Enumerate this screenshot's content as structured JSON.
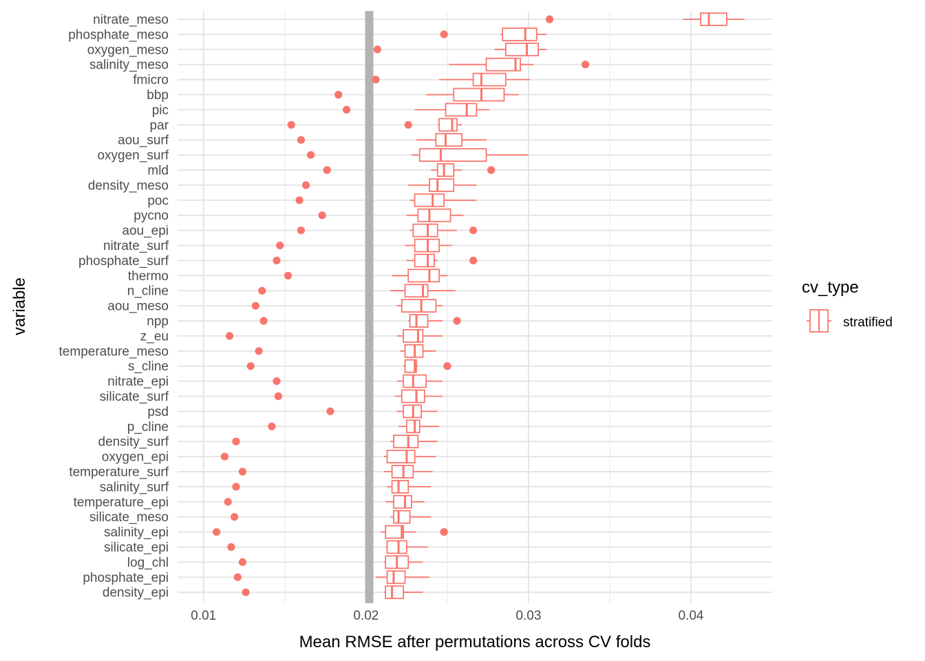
{
  "chart_data": {
    "type": "boxplot",
    "xlabel": "Mean RMSE after permutations across CV folds",
    "ylabel": "variable",
    "xlim": [
      0.0084,
      0.045
    ],
    "x_ticks": [
      0.01,
      0.02,
      0.03,
      0.04
    ],
    "x_tick_labels": [
      "0.01",
      "0.02",
      "0.03",
      "0.04"
    ],
    "grid": true,
    "baseline_value": 0.0202,
    "baseline_color": "#b3b3b3",
    "series_color": "#f8766d",
    "legend": {
      "title": "cv_type",
      "entries": [
        "stratified"
      ],
      "position": "right"
    },
    "variables": [
      {
        "name": "nitrate_meso",
        "wmin": 0.0395,
        "q1": 0.0406,
        "median": 0.0411,
        "q3": 0.0422,
        "wmax": 0.0433,
        "outliers": [
          0.0313
        ]
      },
      {
        "name": "phosphate_meso",
        "wmin": 0.0283,
        "q1": 0.0284,
        "median": 0.0298,
        "q3": 0.0305,
        "wmax": 0.0311,
        "outliers": [
          0.0248
        ]
      },
      {
        "name": "oxygen_meso",
        "wmin": 0.0279,
        "q1": 0.0286,
        "median": 0.0299,
        "q3": 0.0306,
        "wmax": 0.0311,
        "outliers": [
          0.0207
        ]
      },
      {
        "name": "salinity_meso",
        "wmin": 0.0251,
        "q1": 0.0274,
        "median": 0.0292,
        "q3": 0.0295,
        "wmax": 0.0303,
        "outliers": [
          0.0335
        ]
      },
      {
        "name": "fmicro",
        "wmin": 0.0245,
        "q1": 0.0266,
        "median": 0.0271,
        "q3": 0.0286,
        "wmax": 0.0301,
        "outliers": [
          0.0206
        ]
      },
      {
        "name": "bbp",
        "wmin": 0.0237,
        "q1": 0.0254,
        "median": 0.0271,
        "q3": 0.0285,
        "wmax": 0.0294,
        "outliers": [
          0.0183
        ]
      },
      {
        "name": "pic",
        "wmin": 0.023,
        "q1": 0.0249,
        "median": 0.0262,
        "q3": 0.0268,
        "wmax": 0.0276,
        "outliers": [
          0.0188
        ]
      },
      {
        "name": "par",
        "wmin": 0.0244,
        "q1": 0.0245,
        "median": 0.0253,
        "q3": 0.0256,
        "wmax": 0.0259,
        "outliers": [
          0.0154,
          0.0226
        ]
      },
      {
        "name": "aou_surf",
        "wmin": 0.0231,
        "q1": 0.0243,
        "median": 0.0249,
        "q3": 0.0259,
        "wmax": 0.0274,
        "outliers": [
          0.016
        ]
      },
      {
        "name": "oxygen_surf",
        "wmin": 0.0228,
        "q1": 0.0233,
        "median": 0.0246,
        "q3": 0.0274,
        "wmax": 0.03,
        "outliers": [
          0.0166
        ]
      },
      {
        "name": "mld",
        "wmin": 0.024,
        "q1": 0.0244,
        "median": 0.0248,
        "q3": 0.0254,
        "wmax": 0.0259,
        "outliers": [
          0.0176,
          0.0277
        ]
      },
      {
        "name": "density_meso",
        "wmin": 0.0226,
        "q1": 0.0239,
        "median": 0.0244,
        "q3": 0.0254,
        "wmax": 0.0268,
        "outliers": [
          0.0163
        ]
      },
      {
        "name": "poc",
        "wmin": 0.0227,
        "q1": 0.023,
        "median": 0.0241,
        "q3": 0.0248,
        "wmax": 0.0268,
        "outliers": [
          0.0159
        ]
      },
      {
        "name": "pycno",
        "wmin": 0.0225,
        "q1": 0.0232,
        "median": 0.0239,
        "q3": 0.0252,
        "wmax": 0.026,
        "outliers": [
          0.0173
        ]
      },
      {
        "name": "aou_epi",
        "wmin": 0.0227,
        "q1": 0.0229,
        "median": 0.0238,
        "q3": 0.0244,
        "wmax": 0.0256,
        "outliers": [
          0.016,
          0.0266
        ]
      },
      {
        "name": "nitrate_surf",
        "wmin": 0.0224,
        "q1": 0.023,
        "median": 0.0238,
        "q3": 0.0245,
        "wmax": 0.0253,
        "outliers": [
          0.0147
        ]
      },
      {
        "name": "phosphate_surf",
        "wmin": 0.0225,
        "q1": 0.023,
        "median": 0.0238,
        "q3": 0.0242,
        "wmax": 0.0244,
        "outliers": [
          0.0145,
          0.0266
        ]
      },
      {
        "name": "thermo",
        "wmin": 0.0216,
        "q1": 0.0226,
        "median": 0.0239,
        "q3": 0.0245,
        "wmax": 0.025,
        "outliers": [
          0.0152
        ]
      },
      {
        "name": "n_cline",
        "wmin": 0.0215,
        "q1": 0.0224,
        "median": 0.0235,
        "q3": 0.0238,
        "wmax": 0.0255,
        "outliers": [
          0.0136
        ]
      },
      {
        "name": "aou_meso",
        "wmin": 0.0219,
        "q1": 0.0222,
        "median": 0.0234,
        "q3": 0.0243,
        "wmax": 0.0247,
        "outliers": [
          0.0132
        ]
      },
      {
        "name": "npp",
        "wmin": 0.0226,
        "q1": 0.0227,
        "median": 0.0231,
        "q3": 0.0238,
        "wmax": 0.0247,
        "outliers": [
          0.0137,
          0.0256
        ]
      },
      {
        "name": "z_eu",
        "wmin": 0.0219,
        "q1": 0.0223,
        "median": 0.0232,
        "q3": 0.0235,
        "wmax": 0.0247,
        "outliers": [
          0.0116
        ]
      },
      {
        "name": "temperature_meso",
        "wmin": 0.0221,
        "q1": 0.0224,
        "median": 0.023,
        "q3": 0.0235,
        "wmax": 0.0243,
        "outliers": [
          0.0134
        ]
      },
      {
        "name": "s_cline",
        "wmin": 0.0223,
        "q1": 0.0224,
        "median": 0.023,
        "q3": 0.0231,
        "wmax": 0.0232,
        "outliers": [
          0.0129,
          0.025
        ]
      },
      {
        "name": "nitrate_epi",
        "wmin": 0.0219,
        "q1": 0.0223,
        "median": 0.0229,
        "q3": 0.0237,
        "wmax": 0.0247,
        "outliers": [
          0.0145
        ]
      },
      {
        "name": "silicate_surf",
        "wmin": 0.0218,
        "q1": 0.0222,
        "median": 0.0231,
        "q3": 0.0236,
        "wmax": 0.0247,
        "outliers": [
          0.0146
        ]
      },
      {
        "name": "psd",
        "wmin": 0.0219,
        "q1": 0.0223,
        "median": 0.0229,
        "q3": 0.0234,
        "wmax": 0.0244,
        "outliers": [
          0.0178
        ]
      },
      {
        "name": "p_cline",
        "wmin": 0.022,
        "q1": 0.0225,
        "median": 0.023,
        "q3": 0.0233,
        "wmax": 0.0245,
        "outliers": [
          0.0142
        ]
      },
      {
        "name": "density_surf",
        "wmin": 0.0215,
        "q1": 0.0217,
        "median": 0.0226,
        "q3": 0.0232,
        "wmax": 0.0244,
        "outliers": [
          0.012
        ]
      },
      {
        "name": "oxygen_epi",
        "wmin": 0.0211,
        "q1": 0.0213,
        "median": 0.0225,
        "q3": 0.023,
        "wmax": 0.0243,
        "outliers": [
          0.0113
        ]
      },
      {
        "name": "temperature_surf",
        "wmin": 0.0211,
        "q1": 0.0216,
        "median": 0.0223,
        "q3": 0.0229,
        "wmax": 0.0241,
        "outliers": [
          0.0124
        ]
      },
      {
        "name": "salinity_surf",
        "wmin": 0.0213,
        "q1": 0.0216,
        "median": 0.022,
        "q3": 0.0226,
        "wmax": 0.024,
        "outliers": [
          0.012
        ]
      },
      {
        "name": "temperature_epi",
        "wmin": 0.0212,
        "q1": 0.0217,
        "median": 0.0224,
        "q3": 0.0228,
        "wmax": 0.0236,
        "outliers": [
          0.0115
        ]
      },
      {
        "name": "silicate_meso",
        "wmin": 0.0215,
        "q1": 0.0217,
        "median": 0.022,
        "q3": 0.0227,
        "wmax": 0.024,
        "outliers": [
          0.0119
        ]
      },
      {
        "name": "salinity_epi",
        "wmin": 0.0209,
        "q1": 0.0212,
        "median": 0.0222,
        "q3": 0.0223,
        "wmax": 0.0231,
        "outliers": [
          0.0108,
          0.0248
        ]
      },
      {
        "name": "silicate_epi",
        "wmin": 0.0212,
        "q1": 0.0213,
        "median": 0.022,
        "q3": 0.0225,
        "wmax": 0.0238,
        "outliers": [
          0.0117
        ]
      },
      {
        "name": "log_chl",
        "wmin": 0.0211,
        "q1": 0.0212,
        "median": 0.0219,
        "q3": 0.0226,
        "wmax": 0.0235,
        "outliers": [
          0.0124
        ]
      },
      {
        "name": "phosphate_epi",
        "wmin": 0.0206,
        "q1": 0.0213,
        "median": 0.0217,
        "q3": 0.0224,
        "wmax": 0.0239,
        "outliers": [
          0.0121
        ]
      },
      {
        "name": "density_epi",
        "wmin": 0.0211,
        "q1": 0.0212,
        "median": 0.0216,
        "q3": 0.0223,
        "wmax": 0.0235,
        "outliers": [
          0.0126
        ]
      }
    ]
  }
}
